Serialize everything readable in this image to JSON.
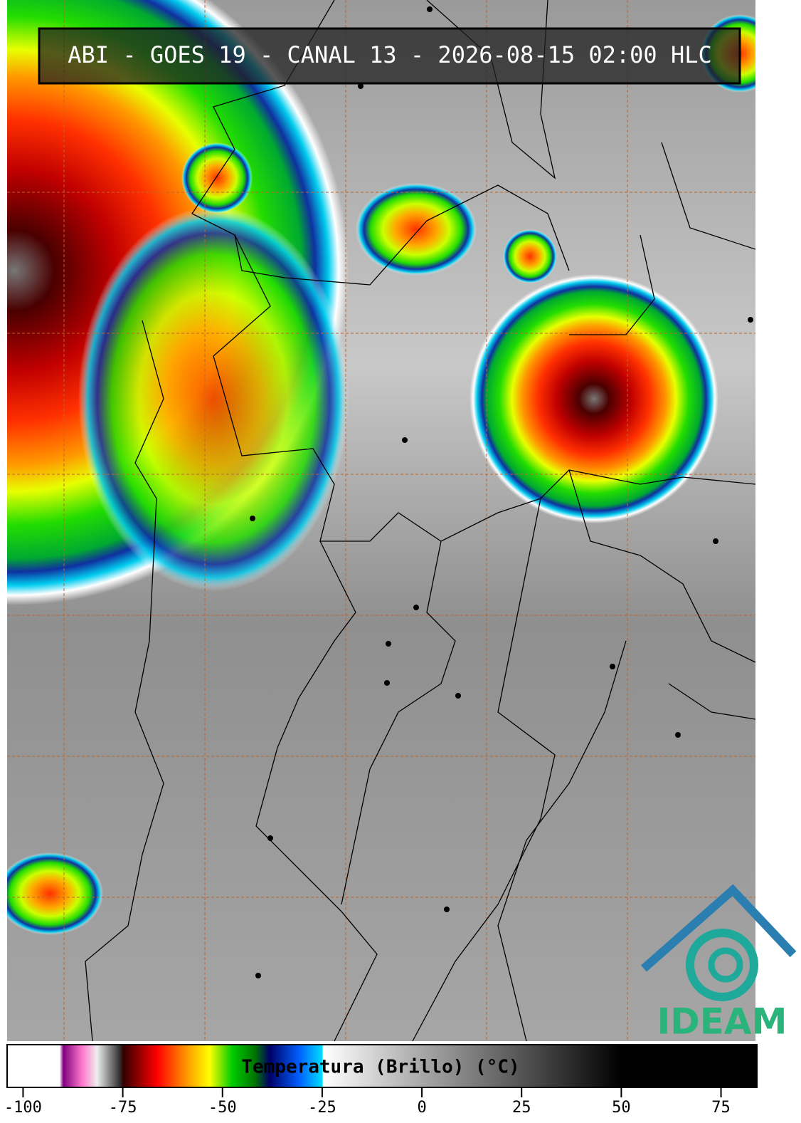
{
  "header": {
    "title": "ABI - GOES 19 - CANAL 13 - 2026-08-15 02:00 HLC"
  },
  "colorbar": {
    "label": "Temperatura (Brillo) (°C)",
    "lim": [
      -104,
      84
    ],
    "ticks": [
      -100,
      -75,
      -50,
      -25,
      0,
      25,
      50,
      75
    ]
  },
  "logo": {
    "text": "IDEAM"
  }
}
